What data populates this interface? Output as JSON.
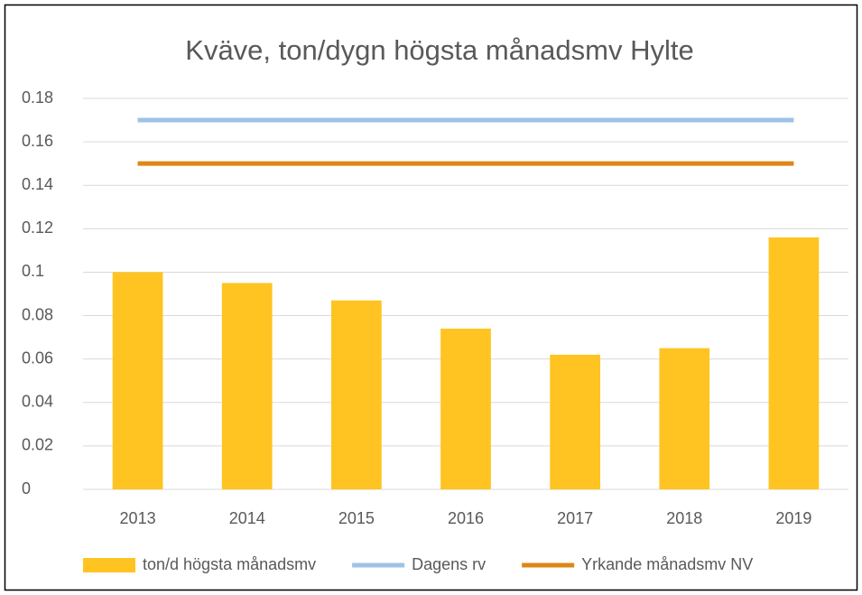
{
  "chart_data": {
    "type": "bar",
    "title": "Kväve, ton/dygn högsta månadsmv Hylte",
    "categories": [
      "2013",
      "2014",
      "2015",
      "2016",
      "2017",
      "2018",
      "2019"
    ],
    "series": [
      {
        "name": "ton/d högsta månadsmv",
        "type": "bar",
        "color": "#ffc421",
        "values": [
          0.1,
          0.095,
          0.087,
          0.074,
          0.062,
          0.065,
          0.116
        ]
      },
      {
        "name": "Dagens rv",
        "type": "line",
        "color": "#9dc3e6",
        "values": [
          0.17,
          0.17,
          0.17,
          0.17,
          0.17,
          0.17,
          0.17
        ]
      },
      {
        "name": "Yrkande månadsmv NV",
        "type": "line",
        "color": "#de8716",
        "values": [
          0.15,
          0.15,
          0.15,
          0.15,
          0.15,
          0.15,
          0.15
        ]
      }
    ],
    "ylim": [
      0,
      0.18
    ],
    "yticks": [
      0,
      0.02,
      0.04,
      0.06,
      0.08,
      0.1,
      0.12,
      0.14,
      0.16,
      0.18
    ],
    "grid": true,
    "legend": "bottom"
  }
}
